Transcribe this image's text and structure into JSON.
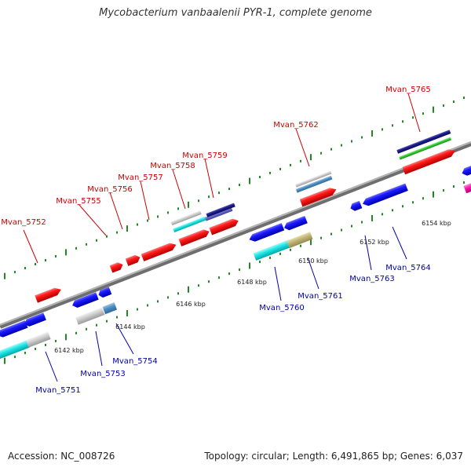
{
  "title": "Mycobacterium vanbaalenii PYR-1, complete genome",
  "footer": {
    "accession": "Accession: NC_008726",
    "summary": "Topology: circular; Length: 6,491,865 bp; Genes: 6,037"
  },
  "colors": {
    "forward_label": "#cc0000",
    "reverse_label": "#0000aa",
    "forward_gene": "#ff0000",
    "reverse_gene": "#0000ee",
    "backbone": "#888888",
    "tick": "#228822"
  },
  "scale_labels": [
    "6142 kbp",
    "6144 kbp",
    "6146 kbp",
    "6148 kbp",
    "6150 kbp",
    "6152 kbp",
    "6154 kbp"
  ],
  "genes_forward": [
    "Mvan_5752",
    "Mvan_5755",
    "Mvan_5756",
    "Mvan_5757",
    "Mvan_5758",
    "Mvan_5759",
    "Mvan_5762",
    "Mvan_5765"
  ],
  "genes_reverse": [
    "Mvan_5751",
    "Mvan_5753",
    "Mvan_5754",
    "Mvan_5760",
    "Mvan_5761",
    "Mvan_5763",
    "Mvan_5764"
  ]
}
